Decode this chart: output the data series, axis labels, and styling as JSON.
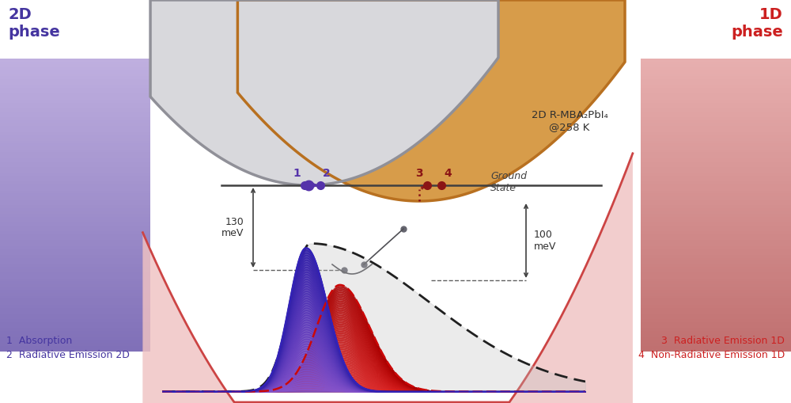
{
  "text_2d_phase": "2D\nphase",
  "text_1d_phase": "1D\nphase",
  "text_130meV": "130\nmeV",
  "text_100meV": "100\nmeV",
  "text_ground_state": "Ground\nState",
  "text_annotation": "2D R-MBA₂PbI₄\n@258 K",
  "text_legend_left": "1  Absorption\n2  Radiative Emission 2D",
  "text_legend_right": "3  Radiative Emission 1D\n4  Non-Radiative Emission 1D",
  "color_purple": "#5533AA",
  "color_darkred": "#8B1515",
  "gray_parabola_fill": "#C8C8CC",
  "orange_parabola_fill": "#D49030",
  "pink_parabola_fill": "#E8A0A0",
  "gray_parabola_edge": "#909098",
  "orange_parabola_edge": "#B87020",
  "pink_parabola_edge": "#CC4444",
  "bg_left_color": "#9B8EC4",
  "bg_right_color": "#CC8888",
  "ground_state_line_color": "#404040",
  "spec_total_fill": "#B0B0B0",
  "spec_abs_fill": "#5533AA",
  "spec_em2d_fill": "#CC1010",
  "spec_total_line": "#202020",
  "label_color_purple": "#4535A0",
  "label_color_red": "#CC2020"
}
